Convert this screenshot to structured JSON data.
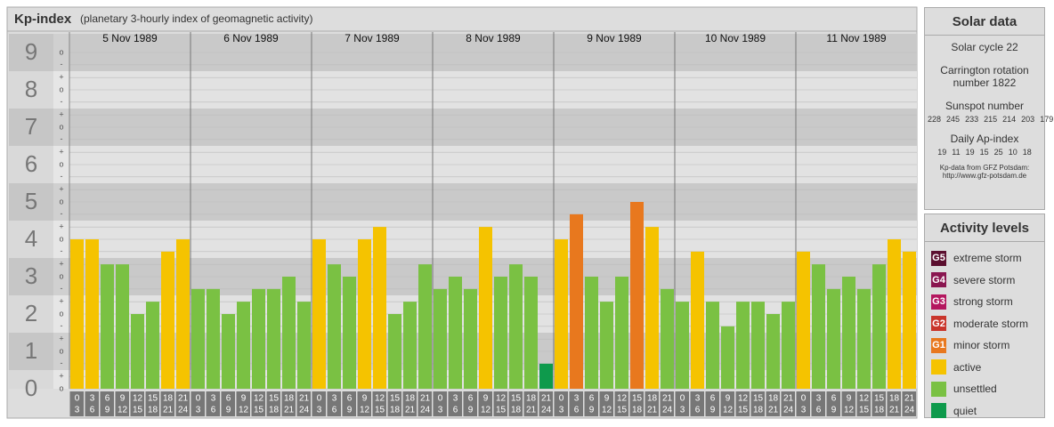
{
  "chart_data": {
    "type": "bar",
    "title": "Kp-index",
    "subtitle": "(planetary 3-hourly index of geomagnetic activity)",
    "days": [
      "5 Nov 1989",
      "6 Nov 1989",
      "7 Nov 1989",
      "8 Nov 1989",
      "9 Nov 1989",
      "10 Nov 1989",
      "11 Nov 1989"
    ],
    "hour_labels": [
      [
        "0",
        "3"
      ],
      [
        "3",
        "6"
      ],
      [
        "6",
        "9"
      ],
      [
        "9",
        "12"
      ],
      [
        "12",
        "15"
      ],
      [
        "15",
        "18"
      ],
      [
        "18",
        "21"
      ],
      [
        "21",
        "24"
      ]
    ],
    "values": [
      4,
      4,
      3.33,
      3.33,
      2,
      2.33,
      3.67,
      4,
      2.67,
      2.67,
      2,
      2.33,
      2.67,
      2.67,
      3,
      2.33,
      4,
      3.33,
      3,
      4,
      4.33,
      2,
      2.33,
      3.33,
      2.67,
      3,
      2.67,
      4.33,
      3,
      3.33,
      3,
      0.67,
      4,
      4.67,
      3,
      2.33,
      3,
      5,
      4.33,
      2.67,
      2.33,
      3.67,
      2.33,
      1.67,
      2.33,
      2.33,
      2,
      2.33,
      3.67,
      3.33,
      2.67,
      3,
      2.67,
      3.33,
      4,
      3.67
    ],
    "colors": [
      "#f5c300",
      "#f5c300",
      "#7ac143",
      "#7ac143",
      "#7ac143",
      "#7ac143",
      "#f5c300",
      "#f5c300",
      "#7ac143",
      "#7ac143",
      "#7ac143",
      "#7ac143",
      "#7ac143",
      "#7ac143",
      "#7ac143",
      "#7ac143",
      "#f5c300",
      "#7ac143",
      "#7ac143",
      "#f5c300",
      "#f5c300",
      "#7ac143",
      "#7ac143",
      "#7ac143",
      "#7ac143",
      "#7ac143",
      "#7ac143",
      "#f5c300",
      "#7ac143",
      "#7ac143",
      "#7ac143",
      "#0e9a4c",
      "#f5c300",
      "#e8781e",
      "#7ac143",
      "#7ac143",
      "#7ac143",
      "#e8781e",
      "#f5c300",
      "#7ac143",
      "#7ac143",
      "#f5c300",
      "#7ac143",
      "#7ac143",
      "#7ac143",
      "#7ac143",
      "#7ac143",
      "#7ac143",
      "#f5c300",
      "#7ac143",
      "#7ac143",
      "#7ac143",
      "#7ac143",
      "#7ac143",
      "#f5c300",
      "#f5c300"
    ],
    "ylim": [
      0,
      9
    ],
    "yticks": [
      0,
      1,
      2,
      3,
      4,
      5,
      6,
      7,
      8,
      9
    ],
    "minor_ticks": [
      {
        "value": 0,
        "label": "o"
      },
      {
        "value": 0.33,
        "label": "+"
      },
      {
        "value": 0.67,
        "label": "-"
      },
      {
        "value": 1,
        "label": "o"
      },
      {
        "value": 1.33,
        "label": "+"
      },
      {
        "value": 1.67,
        "label": "-"
      },
      {
        "value": 2,
        "label": "o"
      },
      {
        "value": 2.33,
        "label": "+"
      },
      {
        "value": 2.67,
        "label": "-"
      },
      {
        "value": 3,
        "label": "o"
      },
      {
        "value": 3.33,
        "label": "+"
      },
      {
        "value": 3.67,
        "label": "-"
      },
      {
        "value": 4,
        "label": "o"
      },
      {
        "value": 4.33,
        "label": "+"
      },
      {
        "value": 4.67,
        "label": "-"
      },
      {
        "value": 5,
        "label": "o"
      },
      {
        "value": 5.33,
        "label": "+"
      },
      {
        "value": 5.67,
        "label": "-"
      },
      {
        "value": 6,
        "label": "o"
      },
      {
        "value": 6.33,
        "label": "+"
      },
      {
        "value": 6.67,
        "label": "-"
      },
      {
        "value": 7,
        "label": "o"
      },
      {
        "value": 7.33,
        "label": "+"
      },
      {
        "value": 7.67,
        "label": "-"
      },
      {
        "value": 8,
        "label": "o"
      },
      {
        "value": 8.33,
        "label": "+"
      },
      {
        "value": 8.67,
        "label": "-"
      },
      {
        "value": 9,
        "label": "o"
      }
    ],
    "grid": true
  },
  "solar_data": {
    "title": "Solar data",
    "cycle": "Solar cycle 22",
    "carrington": "Carrington rotation number 1822",
    "sunspot_title": "Sunspot number",
    "sunspot_numbers": [
      228,
      245,
      233,
      215,
      214,
      203,
      179
    ],
    "ap_title": "Daily Ap-index",
    "ap_values": [
      19,
      11,
      19,
      15,
      25,
      10,
      18
    ],
    "source": "Kp-data from GFZ Potsdam:",
    "url": "http://www.gfz-potsdam.de"
  },
  "activity_levels": {
    "title": "Activity levels",
    "items": [
      {
        "code": "G5",
        "label": "extreme storm",
        "color": "#5b0f2f"
      },
      {
        "code": "G4",
        "label": "severe storm",
        "color": "#8a1650"
      },
      {
        "code": "G3",
        "label": "strong storm",
        "color": "#b4175f"
      },
      {
        "code": "G2",
        "label": "moderate storm",
        "color": "#c9352b"
      },
      {
        "code": "G1",
        "label": "minor storm",
        "color": "#e8781e"
      },
      {
        "label": "active",
        "color": "#f5c300"
      },
      {
        "label": "unsettled",
        "color": "#7ac143"
      },
      {
        "label": "quiet",
        "color": "#0e9a4c"
      }
    ]
  }
}
